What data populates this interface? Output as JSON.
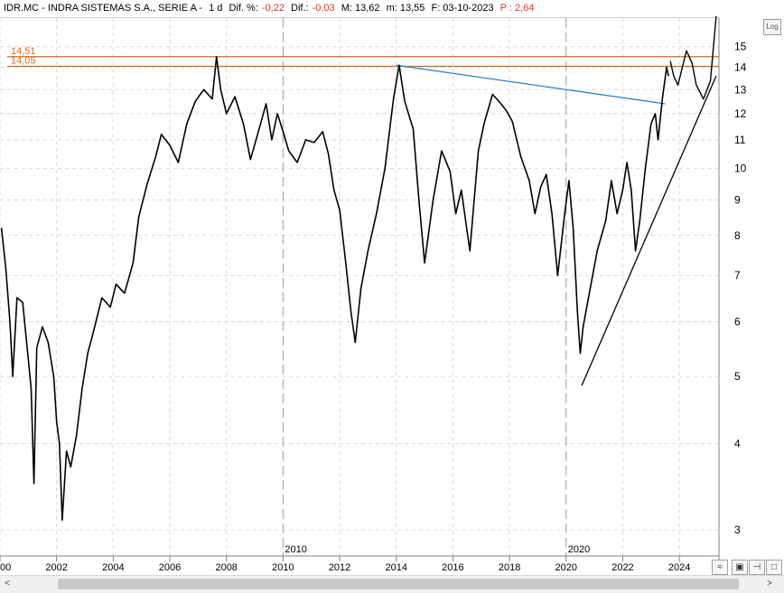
{
  "header": {
    "symbol": "IDR.MC - INDRA SISTEMAS S.A., SERIE A -",
    "timeframe": "1 d",
    "dif_pct_label": "Dif. %:",
    "dif_pct_value": "-0,22",
    "dif_label": "Dif.:",
    "dif_value": "-0,03",
    "max_label": "M: 13,62",
    "min_label": "m: 13,55",
    "date_label": "F: 03-10-2023",
    "p_label": "P : 2,64"
  },
  "controls": {
    "log_label": "Log",
    "scroll_left": "<",
    "scroll_right": ">"
  },
  "colors": {
    "price": "#000000",
    "level": "#d2691e",
    "resistance": "#2f7fc1",
    "trend": "#000000",
    "neg": "#e03030"
  },
  "chart_data": {
    "type": "line",
    "scale": "log",
    "ylim": [
      2.75,
      16.5
    ],
    "xlim": [
      2000.0,
      2025.4
    ],
    "y_ticks": [
      3,
      4,
      5,
      6,
      7,
      8,
      9,
      10,
      11,
      12,
      13,
      14,
      15
    ],
    "x_ticks": [
      {
        "year": 2000,
        "label": "00"
      },
      {
        "year": 2002,
        "label": "2002"
      },
      {
        "year": 2004,
        "label": "2004"
      },
      {
        "year": 2006,
        "label": "2006"
      },
      {
        "year": 2008,
        "label": "2008"
      },
      {
        "year": 2010,
        "label": "2010"
      },
      {
        "year": 2012,
        "label": "2012"
      },
      {
        "year": 2014,
        "label": "2014"
      },
      {
        "year": 2016,
        "label": "2016"
      },
      {
        "year": 2018,
        "label": "2018"
      },
      {
        "year": 2020,
        "label": "2020"
      },
      {
        "year": 2022,
        "label": "2022"
      },
      {
        "year": 2024,
        "label": "2024"
      }
    ],
    "decade_markers": [
      {
        "year": 2010,
        "label": "2010"
      },
      {
        "year": 2020,
        "label": "2020"
      }
    ],
    "levels": [
      {
        "value": 14.51,
        "label": "14,51"
      },
      {
        "value": 14.05,
        "label": "14,05"
      }
    ],
    "series": [
      {
        "points": [
          [
            2000.05,
            8.2
          ],
          [
            2000.2,
            7.2
          ],
          [
            2000.35,
            6.0
          ],
          [
            2000.45,
            5.0
          ],
          [
            2000.6,
            6.5
          ],
          [
            2000.8,
            6.4
          ],
          [
            2001.0,
            5.3
          ],
          [
            2001.1,
            4.8
          ],
          [
            2001.2,
            3.5
          ],
          [
            2001.3,
            5.5
          ],
          [
            2001.5,
            5.9
          ],
          [
            2001.7,
            5.6
          ],
          [
            2001.9,
            5.0
          ],
          [
            2002.0,
            4.3
          ],
          [
            2002.1,
            4.0
          ],
          [
            2002.2,
            3.1
          ],
          [
            2002.35,
            3.9
          ],
          [
            2002.5,
            3.7
          ],
          [
            2002.7,
            4.1
          ],
          [
            2002.9,
            4.8
          ],
          [
            2003.1,
            5.4
          ],
          [
            2003.3,
            5.8
          ],
          [
            2003.6,
            6.5
          ],
          [
            2003.9,
            6.3
          ],
          [
            2004.1,
            6.8
          ],
          [
            2004.4,
            6.6
          ],
          [
            2004.7,
            7.3
          ],
          [
            2004.9,
            8.5
          ],
          [
            2005.2,
            9.5
          ],
          [
            2005.5,
            10.4
          ],
          [
            2005.7,
            11.2
          ],
          [
            2006.0,
            10.8
          ],
          [
            2006.3,
            10.2
          ],
          [
            2006.6,
            11.6
          ],
          [
            2006.9,
            12.5
          ],
          [
            2007.2,
            13.0
          ],
          [
            2007.5,
            12.6
          ],
          [
            2007.65,
            14.5
          ],
          [
            2007.8,
            13.0
          ],
          [
            2008.0,
            12.0
          ],
          [
            2008.3,
            12.7
          ],
          [
            2008.6,
            11.6
          ],
          [
            2008.85,
            10.3
          ],
          [
            2009.1,
            11.2
          ],
          [
            2009.4,
            12.4
          ],
          [
            2009.6,
            11.0
          ],
          [
            2009.8,
            12.0
          ],
          [
            2010.0,
            11.3
          ],
          [
            2010.2,
            10.6
          ],
          [
            2010.5,
            10.2
          ],
          [
            2010.8,
            11.0
          ],
          [
            2011.1,
            10.9
          ],
          [
            2011.4,
            11.3
          ],
          [
            2011.6,
            10.5
          ],
          [
            2011.8,
            9.3
          ],
          [
            2012.0,
            8.7
          ],
          [
            2012.2,
            7.4
          ],
          [
            2012.4,
            6.2
          ],
          [
            2012.55,
            5.6
          ],
          [
            2012.75,
            6.7
          ],
          [
            2013.0,
            7.6
          ],
          [
            2013.3,
            8.6
          ],
          [
            2013.6,
            10.0
          ],
          [
            2013.9,
            12.6
          ],
          [
            2014.1,
            14.1
          ],
          [
            2014.3,
            12.5
          ],
          [
            2014.6,
            11.4
          ],
          [
            2014.8,
            9.0
          ],
          [
            2015.0,
            7.3
          ],
          [
            2015.3,
            9.0
          ],
          [
            2015.6,
            10.6
          ],
          [
            2015.9,
            9.9
          ],
          [
            2016.1,
            8.6
          ],
          [
            2016.3,
            9.3
          ],
          [
            2016.6,
            7.6
          ],
          [
            2016.9,
            10.6
          ],
          [
            2017.1,
            11.6
          ],
          [
            2017.4,
            12.8
          ],
          [
            2017.7,
            12.4
          ],
          [
            2017.9,
            12.1
          ],
          [
            2018.1,
            11.7
          ],
          [
            2018.4,
            10.4
          ],
          [
            2018.7,
            9.6
          ],
          [
            2018.9,
            8.6
          ],
          [
            2019.1,
            9.4
          ],
          [
            2019.3,
            9.8
          ],
          [
            2019.5,
            8.6
          ],
          [
            2019.7,
            7.0
          ],
          [
            2019.95,
            8.6
          ],
          [
            2020.1,
            9.6
          ],
          [
            2020.25,
            8.2
          ],
          [
            2020.4,
            6.2
          ],
          [
            2020.5,
            5.4
          ],
          [
            2020.6,
            5.9
          ],
          [
            2020.85,
            6.7
          ],
          [
            2021.1,
            7.6
          ],
          [
            2021.4,
            8.4
          ],
          [
            2021.6,
            9.6
          ],
          [
            2021.8,
            8.6
          ],
          [
            2022.0,
            9.3
          ],
          [
            2022.15,
            10.2
          ],
          [
            2022.3,
            9.3
          ],
          [
            2022.45,
            7.6
          ],
          [
            2022.6,
            8.4
          ],
          [
            2022.8,
            10.0
          ],
          [
            2023.0,
            11.6
          ],
          [
            2023.15,
            12.0
          ],
          [
            2023.25,
            11.0
          ],
          [
            2023.4,
            12.6
          ],
          [
            2023.55,
            14.0
          ],
          [
            2023.62,
            13.6
          ]
        ]
      },
      {
        "points": [
          [
            2023.68,
            14.3
          ],
          [
            2023.8,
            13.6
          ],
          [
            2023.95,
            13.2
          ],
          [
            2024.25,
            14.8
          ],
          [
            2024.45,
            14.2
          ],
          [
            2024.6,
            13.2
          ],
          [
            2024.85,
            12.6
          ],
          [
            2025.1,
            13.4
          ],
          [
            2025.3,
            16.6
          ]
        ]
      }
    ],
    "trendlines": [
      {
        "kind": "support",
        "from": [
          2020.55,
          4.85
        ],
        "to": [
          2025.3,
          13.6
        ]
      },
      {
        "kind": "resistance",
        "from": [
          2014.0,
          14.1
        ],
        "to": [
          2023.5,
          12.4
        ]
      }
    ]
  }
}
